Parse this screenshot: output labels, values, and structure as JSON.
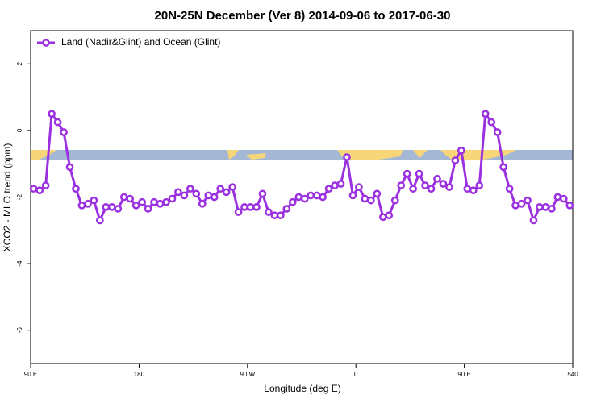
{
  "chart_data": {
    "type": "line",
    "title": "20N-25N December (Ver 8)   2014-09-06 to 2017-06-30",
    "x_label": "Longitude (deg E)",
    "y_label": "XCO2 - MLO trend (ppm)",
    "x": [
      92.5,
      97.5,
      102.5,
      107.5,
      112.5,
      117.5,
      122.5,
      127.5,
      132.5,
      137.5,
      142.5,
      147.5,
      152.5,
      157.5,
      162.5,
      167.5,
      172.5,
      177.5,
      182.5,
      187.5,
      192.5,
      197.5,
      202.5,
      207.5,
      212.5,
      217.5,
      222.5,
      227.5,
      232.5,
      237.5,
      242.5,
      247.5,
      252.5,
      257.5,
      262.5,
      267.5,
      272.5,
      277.5,
      282.5,
      287.5,
      292.5,
      297.5,
      302.5,
      307.5,
      312.5,
      317.5,
      322.5,
      327.5,
      332.5,
      337.5,
      342.5,
      347.5,
      352.5,
      357.5,
      362.5,
      367.5,
      372.5,
      377.5,
      382.5,
      387.5,
      392.5,
      397.5,
      402.5,
      407.5,
      412.5,
      417.5,
      422.5,
      427.5,
      432.5,
      437.5,
      442.5,
      447.5,
      452.5,
      457.5,
      462.5,
      467.5,
      472.5,
      477.5,
      482.5,
      487.5,
      492.5,
      497.5,
      502.5,
      507.5,
      512.5,
      517.5,
      522.5,
      527.5,
      532.5,
      537.5
    ],
    "series": [
      {
        "name": "Land (Nadir&Glint) and Ocean (Glint)",
        "color": "#9b30e0",
        "values": [
          -1.75,
          -1.8,
          -1.65,
          0.5,
          0.25,
          -0.05,
          -1.1,
          -1.75,
          -2.25,
          -2.2,
          -2.1,
          -2.7,
          -2.3,
          -2.3,
          -2.35,
          -2.0,
          -2.05,
          -2.25,
          -2.15,
          -2.35,
          -2.15,
          -2.2,
          -2.15,
          -2.05,
          -1.85,
          -1.95,
          -1.75,
          -1.9,
          -2.2,
          -1.95,
          -2.0,
          -1.75,
          -1.85,
          -1.7,
          -2.45,
          -2.3,
          -2.3,
          -2.3,
          -1.9,
          -2.45,
          -2.55,
          -2.55,
          -2.35,
          -2.15,
          -2.0,
          -2.05,
          -1.95,
          -1.95,
          -2.0,
          -1.75,
          -1.65,
          -1.6,
          -0.8,
          -1.95,
          -1.7,
          -2.05,
          -2.1,
          -1.9,
          -2.6,
          -2.55,
          -2.1,
          -1.65,
          -1.3,
          -1.75,
          -1.3,
          -1.65,
          -1.75,
          -1.45,
          -1.6,
          -1.7,
          -0.9,
          -0.6,
          -1.75,
          -1.8,
          -1.65,
          0.5,
          0.25,
          -0.05,
          -1.1,
          -1.75,
          -2.25,
          -2.2,
          -2.1,
          -2.7,
          -2.3,
          -2.3,
          -2.35,
          -2.0,
          -2.05,
          -2.25
        ]
      }
    ],
    "xlim": [
      90,
      540
    ],
    "xticks": [
      {
        "value": 90,
        "label": "90 E"
      },
      180,
      {
        "value": 270,
        "label": "90 W"
      },
      {
        "value": 360,
        "label": "0"
      },
      {
        "value": 450,
        "label": "90 E"
      },
      540
    ],
    "ylim": [
      -7,
      3
    ],
    "yticks": [
      -6,
      -4,
      -2,
      0,
      2
    ],
    "grid": false,
    "legend": "top-left"
  }
}
